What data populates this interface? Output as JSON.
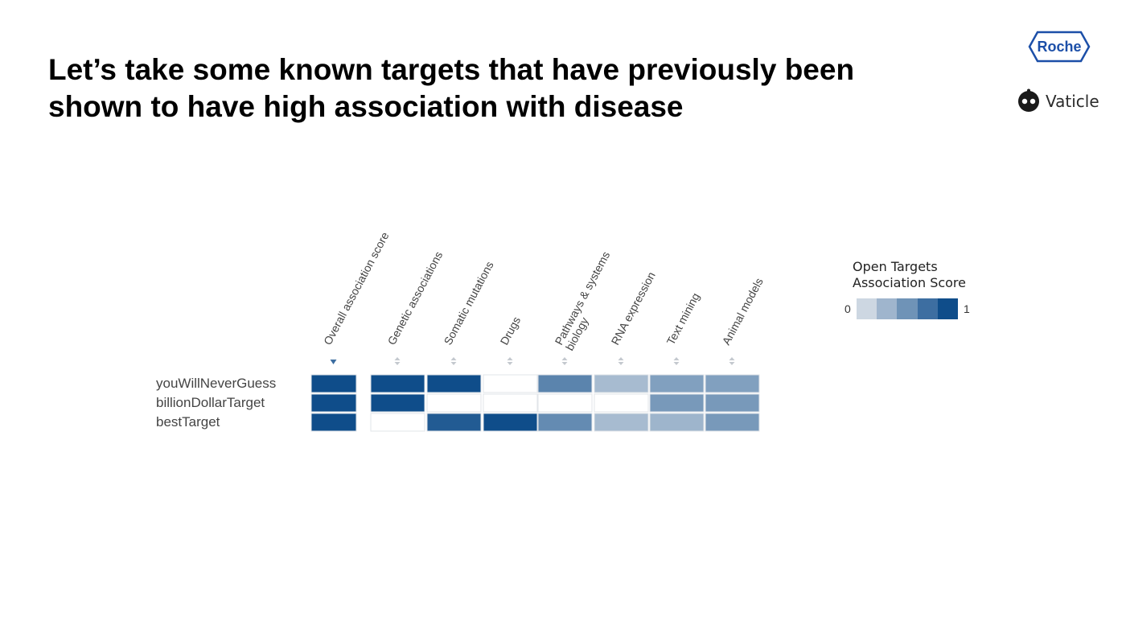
{
  "slide": {
    "title_line1": "Let’s take some known targets that have previously been",
    "title_line2": "shown to have high association with disease"
  },
  "logos": {
    "roche": "Roche",
    "vaticle": "Vaticle",
    "roche_color": "#0b41cd"
  },
  "legend": {
    "title_line1": "Open Targets",
    "title_line2": "Association Score",
    "min_label": "0",
    "max_label": "1",
    "colors": [
      "#cdd7e2",
      "#9fb5cd",
      "#6f93b7",
      "#3d6ea1",
      "#0f4d8a"
    ]
  },
  "chart_data": {
    "type": "heatmap",
    "title": "",
    "columns": [
      "Overall association score",
      "Genetic associations",
      "Somatic mutations",
      "Drugs",
      "Pathways & systems biology",
      "RNA expression",
      "Text mining",
      "Animal models"
    ],
    "column_label_lines": [
      [
        "Overall association score"
      ],
      [
        "Genetic associations"
      ],
      [
        "Somatic mutations"
      ],
      [
        "Drugs"
      ],
      [
        "Pathways & systems",
        "biology"
      ],
      [
        "RNA expression"
      ],
      [
        "Text mining"
      ],
      [
        "Animal models"
      ]
    ],
    "sort": {
      "active_column": "Overall association score",
      "direction": "descending"
    },
    "rows": [
      "youWillNeverGuess",
      "billionDollarTarget",
      "bestTarget"
    ],
    "values": [
      [
        1.0,
        1.0,
        1.0,
        0.0,
        0.6,
        0.2,
        0.4,
        0.4
      ],
      [
        1.0,
        1.0,
        0.0,
        0.0,
        0.0,
        0.0,
        0.45,
        0.45
      ],
      [
        1.0,
        0.0,
        0.9,
        1.0,
        0.55,
        0.2,
        0.25,
        0.45
      ]
    ],
    "color_scale": {
      "min": 0,
      "max": 1,
      "zero_color": "#ffffff",
      "low_color": "#cdd7e2",
      "high_color": "#0f4d8a"
    }
  }
}
